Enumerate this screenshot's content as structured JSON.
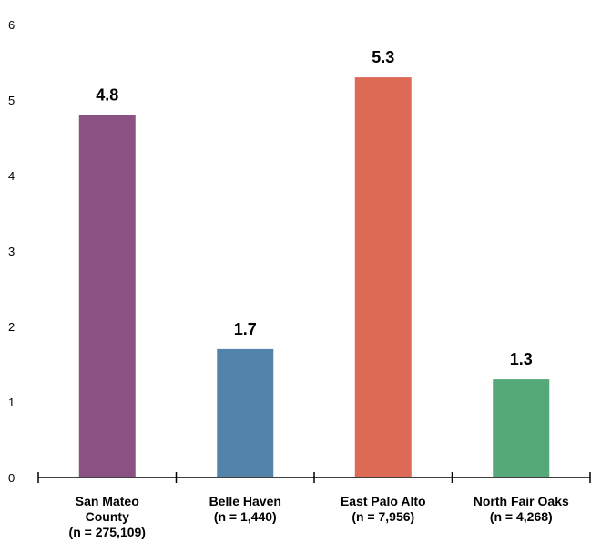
{
  "chart_data": {
    "type": "bar",
    "categories": [
      [
        "San Mateo",
        "County",
        "(n = 275,109)"
      ],
      [
        "Belle Haven",
        "(n = 1,440)"
      ],
      [
        "East Palo Alto",
        "(n = 7,956)"
      ],
      [
        "North Fair Oaks",
        "(n = 4,268)"
      ]
    ],
    "values": [
      4.8,
      1.7,
      5.3,
      1.3
    ],
    "value_labels": [
      "4.8",
      "1.7",
      "5.3",
      "1.3"
    ],
    "colors": [
      "#8b5183",
      "#5383a8",
      "#dd6a55",
      "#55a87a"
    ],
    "ylim": [
      0,
      6
    ],
    "yticks": [
      "0",
      "1",
      "2",
      "3",
      "4",
      "5",
      "6"
    ],
    "grid": false,
    "legend": "none"
  }
}
